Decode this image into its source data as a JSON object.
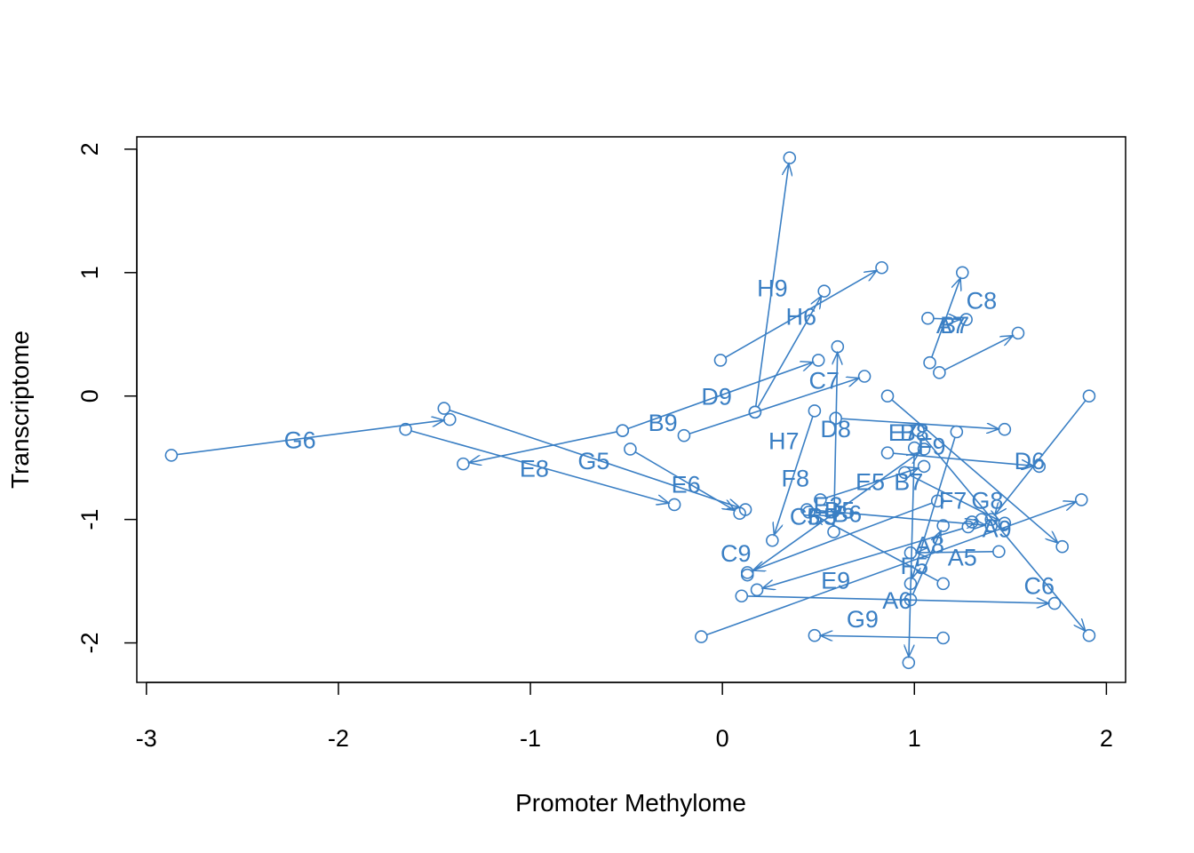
{
  "chart_data": {
    "type": "scatter",
    "title": "",
    "xlabel": "Promoter Methylome",
    "ylabel": "Transcriptome",
    "xlim": [
      -3.05,
      2.1
    ],
    "ylim": [
      -2.32,
      2.1
    ],
    "xticks": [
      "-3",
      "-2",
      "-1",
      "0",
      "1",
      "2"
    ],
    "yticks": [
      "-2",
      "-1",
      "0",
      "1",
      "2"
    ],
    "color": "#3a7fc4",
    "points": [
      {
        "label": "G6",
        "from": [
          -2.87,
          -0.48
        ],
        "to": [
          -1.42,
          -0.19
        ]
      },
      {
        "label": "E8",
        "from": [
          -1.65,
          -0.27
        ],
        "to": [
          -0.25,
          -0.88
        ]
      },
      {
        "label": "G5",
        "from": [
          -1.45,
          -0.1
        ],
        "to": [
          0.12,
          -0.92
        ]
      },
      {
        "label": "B9",
        "from": [
          -0.52,
          -0.28
        ],
        "to": [
          0.5,
          0.29
        ]
      },
      {
        "label": "D9",
        "from": [
          -0.52,
          -0.28
        ],
        "to": [
          -1.35,
          -0.55
        ]
      },
      {
        "label": "E6",
        "from": [
          -0.48,
          -0.43
        ],
        "to": [
          0.09,
          -0.95
        ]
      },
      {
        "label": "H6",
        "from": [
          -0.01,
          0.29
        ],
        "to": [
          0.83,
          1.04
        ]
      },
      {
        "label": "H9",
        "from": [
          0.17,
          -0.13
        ],
        "to": [
          0.35,
          1.93
        ]
      },
      {
        "label": "C7",
        "from": [
          -0.2,
          -0.32
        ],
        "to": [
          0.74,
          0.16
        ]
      },
      {
        "label": "D8",
        "from": [
          0.59,
          -0.18
        ],
        "to": [
          1.47,
          -0.27
        ]
      },
      {
        "label": "H7",
        "from": [
          0.17,
          -0.13
        ],
        "to": [
          0.53,
          0.85
        ]
      },
      {
        "label": "F8",
        "from": [
          0.48,
          -0.12
        ],
        "to": [
          0.26,
          -1.17
        ]
      },
      {
        "label": "C9",
        "from": [
          0.13,
          -1.45
        ],
        "to": [
          1.05,
          -0.43
        ]
      },
      {
        "label": "E9",
        "from": [
          -0.11,
          -1.95
        ],
        "to": [
          1.87,
          -0.84
        ]
      },
      {
        "label": "A6",
        "from": [
          0.1,
          -1.62
        ],
        "to": [
          1.73,
          -1.68
        ]
      },
      {
        "label": "G9",
        "from": [
          1.15,
          -1.96
        ],
        "to": [
          0.48,
          -1.94
        ]
      },
      {
        "label": "C8",
        "from": [
          1.13,
          0.19
        ],
        "to": [
          1.54,
          0.51
        ]
      },
      {
        "label": "B7",
        "from": [
          1.08,
          0.27
        ],
        "to": [
          1.25,
          1.0
        ]
      },
      {
        "label": "D6",
        "from": [
          0.86,
          -0.46
        ],
        "to": [
          1.65,
          -0.57
        ]
      },
      {
        "label": "E5",
        "from": [
          0.95,
          -0.62
        ],
        "to": [
          1.47,
          -1.03
        ]
      },
      {
        "label": "E7",
        "from": [
          1.02,
          -0.28
        ],
        "to": [
          1.91,
          -1.94
        ]
      },
      {
        "label": "G8",
        "from": [
          1.91,
          0.0
        ],
        "to": [
          1.4,
          -1.0
        ]
      },
      {
        "label": "A8",
        "from": [
          0.98,
          -1.65
        ],
        "to": [
          1.15,
          -1.05
        ]
      },
      {
        "label": "A5",
        "from": [
          1.44,
          -1.26
        ],
        "to": [
          0.98,
          -1.27
        ]
      },
      {
        "label": "F5",
        "from": [
          1.0,
          -0.42
        ],
        "to": [
          0.97,
          -2.16
        ]
      },
      {
        "label": "C6",
        "from": [
          0.86,
          0.0
        ],
        "to": [
          1.77,
          -1.22
        ]
      },
      {
        "label": "A9",
        "from": [
          1.35,
          -1.0
        ],
        "to": [
          1.3,
          -1.02
        ]
      },
      {
        "label": "C5",
        "from": [
          0.44,
          -0.92
        ],
        "to": [
          1.4,
          -1.05
        ]
      },
      {
        "label": "B5",
        "from": [
          0.51,
          -0.84
        ],
        "to": [
          1.05,
          -0.57
        ]
      },
      {
        "label": "D5",
        "from": [
          0.58,
          -1.1
        ],
        "to": [
          0.6,
          0.4
        ]
      },
      {
        "label": "F7",
        "from": [
          1.22,
          -0.29
        ],
        "to": [
          0.98,
          -1.52
        ]
      },
      {
        "label": "F6",
        "from": [
          1.15,
          -1.52
        ],
        "to": [
          0.45,
          -0.94
        ]
      },
      {
        "label": "E3",
        "from": [
          1.28,
          -1.06
        ],
        "to": [
          0.18,
          -1.57
        ]
      },
      {
        "label": "B6",
        "from": [
          1.12,
          -0.85
        ],
        "to": [
          0.13,
          -1.43
        ]
      },
      {
        "label": "A7",
        "from": [
          1.07,
          0.63
        ],
        "to": [
          1.27,
          0.62
        ]
      }
    ],
    "labels": [
      {
        "text": "G6",
        "x": -2.2,
        "y": -0.35
      },
      {
        "text": "E8",
        "x": -0.98,
        "y": -0.58
      },
      {
        "text": "G5",
        "x": -0.67,
        "y": -0.52
      },
      {
        "text": "B9",
        "x": -0.31,
        "y": -0.21
      },
      {
        "text": "D9",
        "x": -0.03,
        "y": 0.0
      },
      {
        "text": "E6",
        "x": -0.19,
        "y": -0.71
      },
      {
        "text": "H9",
        "x": 0.26,
        "y": 0.88
      },
      {
        "text": "H6",
        "x": 0.41,
        "y": 0.65
      },
      {
        "text": "C7",
        "x": 0.53,
        "y": 0.13
      },
      {
        "text": "D8",
        "x": 0.59,
        "y": -0.26
      },
      {
        "text": "H7",
        "x": 0.32,
        "y": -0.36
      },
      {
        "text": "F8",
        "x": 0.38,
        "y": -0.66
      },
      {
        "text": "C9",
        "x": 0.07,
        "y": -1.27
      },
      {
        "text": "E9",
        "x": 0.59,
        "y": -1.49
      },
      {
        "text": "A6",
        "x": 0.91,
        "y": -1.65
      },
      {
        "text": "G9",
        "x": 0.73,
        "y": -1.8
      },
      {
        "text": "C8",
        "x": 1.35,
        "y": 0.78
      },
      {
        "text": "A7",
        "x": 1.19,
        "y": 0.58
      },
      {
        "text": "B7",
        "x": 1.21,
        "y": 0.58
      },
      {
        "text": "E7",
        "x": 0.94,
        "y": -0.29
      },
      {
        "text": "B8",
        "x": 1.0,
        "y": -0.29
      },
      {
        "text": "F9",
        "x": 1.09,
        "y": -0.4
      },
      {
        "text": "D6",
        "x": 1.6,
        "y": -0.52
      },
      {
        "text": "E5",
        "x": 0.77,
        "y": -0.69
      },
      {
        "text": "B7",
        "x": 0.97,
        "y": -0.69
      },
      {
        "text": "F7",
        "x": 1.2,
        "y": -0.84
      },
      {
        "text": "G8",
        "x": 1.38,
        "y": -0.84
      },
      {
        "text": "A9",
        "x": 1.43,
        "y": -1.07
      },
      {
        "text": "A8",
        "x": 1.08,
        "y": -1.2
      },
      {
        "text": "A5",
        "x": 1.25,
        "y": -1.3
      },
      {
        "text": "F5",
        "x": 1.0,
        "y": -1.37
      },
      {
        "text": "C6",
        "x": 1.65,
        "y": -1.53
      },
      {
        "text": "C5",
        "x": 0.43,
        "y": -0.97
      },
      {
        "text": "B5",
        "x": 0.52,
        "y": -0.97
      },
      {
        "text": "D5",
        "x": 0.61,
        "y": -0.92
      },
      {
        "text": "B6",
        "x": 0.65,
        "y": -0.95
      },
      {
        "text": "E3",
        "x": 0.55,
        "y": -0.88
      }
    ]
  }
}
